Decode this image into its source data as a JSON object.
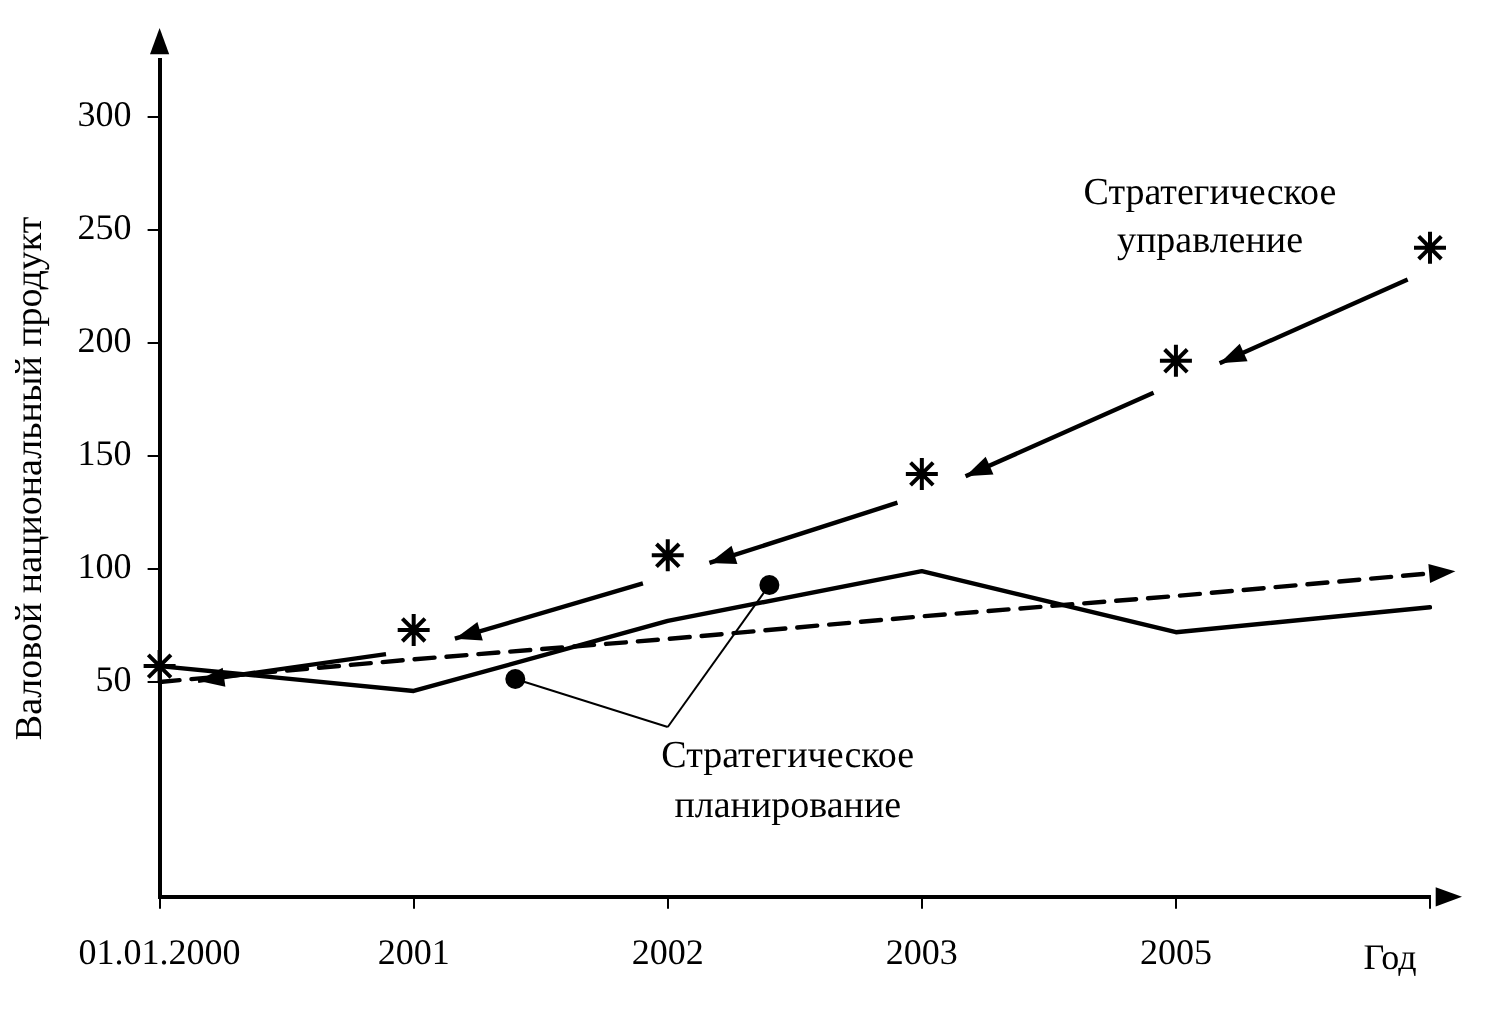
{
  "chart_data": {
    "type": "line",
    "xlabel": "Год",
    "ylabel": "Валовой национальный продукт",
    "categories": [
      "01.01.2000",
      "2001",
      "2002",
      "2003",
      "2005",
      null
    ],
    "ylim": [
      -45,
      325
    ],
    "yticks": [
      50,
      100,
      150,
      200,
      250,
      300
    ],
    "grid": false,
    "legend": false,
    "series": [
      {
        "name": "Стратегическое управление",
        "type": "scatter",
        "marker": "cross",
        "color": "#000000",
        "values": [
          57,
          73,
          106,
          142,
          192,
          242
        ]
      },
      {
        "name": "Стратегическое планирование",
        "marker": "none",
        "line_style": "solid",
        "color": "#000000",
        "values": [
          57,
          46,
          77,
          99,
          72,
          83
        ]
      },
      {
        "marker": "none",
        "line_style": "dashed",
        "color": "#000000",
        "values": [
          50,
          60,
          69,
          79,
          88,
          98
        ]
      }
    ]
  }
}
